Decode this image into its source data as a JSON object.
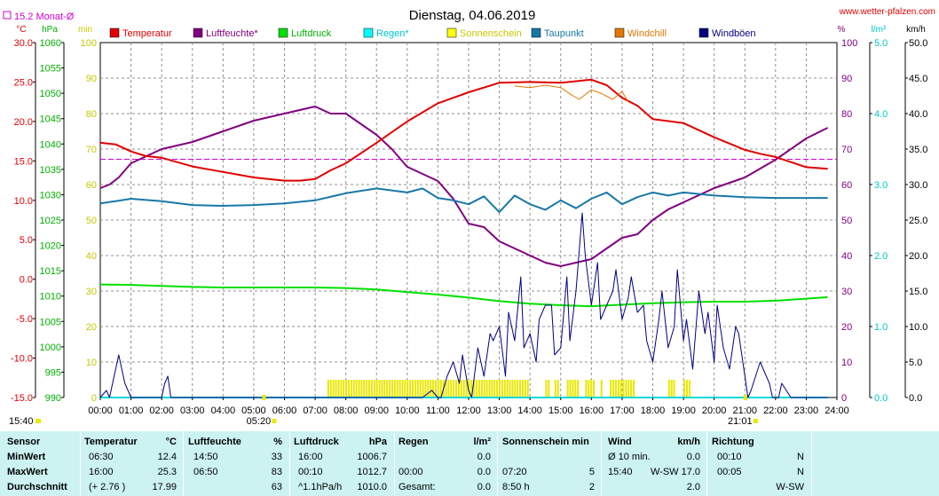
{
  "header": {
    "title": "Dienstag, 04.06.2019",
    "site": "www.wetter-pfalzen.com",
    "month_avg": "15.2 Monat-Ø"
  },
  "units": {
    "celsius": "°C",
    "hpa": "hPa",
    "min": "min",
    "percent": "%",
    "lm2": "l/m²",
    "kmh": "km/h"
  },
  "colors": {
    "temperature": "#e00000",
    "humidity": "#800080",
    "pressure": "#00e000",
    "rain": "#00d8d8",
    "sunshine": "#e8e800",
    "dewpoint": "#1878a8",
    "windchill": "#e07800",
    "gusts": "#000080",
    "monthavg": "#d000d0"
  },
  "chart_data": {
    "type": "line",
    "xlabels": [
      "00:00",
      "01:00",
      "02:00",
      "03:00",
      "04:00",
      "05:00",
      "06:00",
      "07:00",
      "08:00",
      "09:00",
      "10:00",
      "11:00",
      "12:00",
      "13:00",
      "14:00",
      "15:00",
      "16:00",
      "17:00",
      "18:00",
      "19:00",
      "20:00",
      "21:00",
      "22:00",
      "23:00",
      "24:00"
    ],
    "markers": {
      "sunrise": "05:20",
      "sunset": "21:01"
    },
    "axes": {
      "temperature": {
        "min": -15,
        "max": 30,
        "ticks": [
          "30.0",
          "25.0",
          "20.0",
          "15.0",
          "10.0",
          "5.0",
          "0.0",
          "-5.0",
          "-10.0",
          "-15.0"
        ]
      },
      "pressure": {
        "min": 990,
        "max": 1060,
        "ticks": [
          "1060",
          "1055",
          "1050",
          "1045",
          "1040",
          "1035",
          "1030",
          "1025",
          "1020",
          "1015",
          "1010",
          "1005",
          "1000",
          "995",
          "990"
        ]
      },
      "sunshine_min": {
        "min": 0,
        "max": 100,
        "ticks": [
          "100",
          "90",
          "80",
          "70",
          "60",
          "50",
          "40",
          "30",
          "20",
          "10",
          "0"
        ]
      },
      "humidity_pct": {
        "min": 0,
        "max": 100,
        "ticks": [
          "100",
          "90",
          "80",
          "70",
          "60",
          "50",
          "40",
          "30",
          "20",
          "10",
          "0"
        ]
      },
      "rain_lm2": {
        "min": 0,
        "max": 5,
        "ticks": [
          "5.0",
          "4.0",
          "3.0",
          "2.0",
          "1.0",
          "0.0"
        ]
      },
      "wind_kmh": {
        "min": 0,
        "max": 50,
        "ticks": [
          "50.0",
          "45.0",
          "40.0",
          "35.0",
          "30.0",
          "25.0",
          "20.0",
          "15.0",
          "10.0",
          "5.0",
          "0.0"
        ]
      }
    },
    "month_avg_temp": 15.2,
    "series": [
      {
        "name": "Temperatur",
        "axis": "temperature",
        "x": [
          0,
          0.5,
          1,
          1.5,
          2,
          3,
          4,
          5,
          6,
          6.5,
          7,
          7.5,
          8,
          9,
          10,
          11,
          12,
          13,
          14,
          15,
          16,
          16.5,
          17,
          17.5,
          18,
          19,
          20,
          21,
          21.5,
          22,
          23,
          23.7
        ],
        "y": [
          17.3,
          17.1,
          16.2,
          15.6,
          15.4,
          14.3,
          13.6,
          12.9,
          12.5,
          12.5,
          12.7,
          13.8,
          14.7,
          17.3,
          20.0,
          22.3,
          23.7,
          24.9,
          25.0,
          24.9,
          25.3,
          24.6,
          23.0,
          22.0,
          20.3,
          19.8,
          18.0,
          16.4,
          15.9,
          15.5,
          14.2,
          14.0
        ]
      },
      {
        "name": "Luftfeuchte*",
        "axis": "humidity_pct",
        "x": [
          0,
          0.3,
          0.6,
          1,
          1.5,
          2,
          3,
          4,
          5,
          6,
          6.5,
          7,
          7.5,
          8,
          8.5,
          9,
          9.5,
          10,
          10.5,
          11,
          11.5,
          12,
          12.5,
          13,
          13.5,
          14,
          14.5,
          15,
          15.5,
          16,
          16.5,
          17,
          17.5,
          18,
          18.5,
          19,
          20,
          21,
          22,
          23,
          23.7
        ],
        "y": [
          59,
          60,
          62,
          66,
          68,
          70,
          72,
          75,
          78,
          80,
          81,
          82,
          80,
          80,
          77,
          74,
          70,
          65,
          63,
          61,
          56,
          49,
          48,
          44,
          42,
          40,
          38,
          37,
          38,
          39,
          42,
          45,
          46,
          50,
          53,
          55,
          59,
          62,
          67,
          73,
          76
        ]
      },
      {
        "name": "Luftdruck",
        "axis": "pressure",
        "x": [
          0,
          1,
          2,
          3,
          4,
          5,
          6,
          7,
          8,
          9,
          10,
          11,
          12,
          13,
          14,
          15,
          16,
          17,
          18,
          19,
          20,
          21,
          22,
          23,
          23.7
        ],
        "y": [
          1012.3,
          1012.2,
          1012.0,
          1011.8,
          1011.7,
          1011.7,
          1011.7,
          1011.7,
          1011.6,
          1011.3,
          1010.8,
          1010.3,
          1009.7,
          1009.0,
          1008.5,
          1008.2,
          1008.0,
          1008.3,
          1008.6,
          1008.8,
          1008.9,
          1008.9,
          1009.1,
          1009.5,
          1009.8
        ]
      },
      {
        "name": "Regen*",
        "axis": "rain_lm2",
        "x": [
          0,
          23.7
        ],
        "y": [
          0,
          0
        ]
      },
      {
        "name": "Taupunkt",
        "axis": "temperature",
        "x": [
          0,
          0.5,
          1,
          2,
          3,
          4,
          5,
          6,
          7,
          8,
          9,
          10,
          10.5,
          11,
          11.5,
          12,
          12.5,
          13,
          13.5,
          14,
          14.5,
          15,
          15.5,
          16,
          16.5,
          17,
          17.5,
          18,
          18.5,
          19,
          20,
          21,
          22,
          23,
          23.7
        ],
        "y": [
          9.6,
          9.9,
          10.2,
          9.9,
          9.4,
          9.3,
          9.4,
          9.6,
          10.0,
          10.9,
          11.5,
          11.0,
          11.5,
          10.3,
          10.0,
          9.5,
          10.5,
          8.5,
          10.6,
          9.5,
          8.8,
          10.0,
          9.0,
          10.2,
          11.0,
          9.5,
          10.4,
          11.0,
          10.6,
          11.0,
          10.6,
          10.4,
          10.3,
          10.3,
          10.3
        ]
      },
      {
        "name": "Windchill",
        "axis": "temperature",
        "x": [
          13.5,
          14,
          14.5,
          15,
          15.3,
          15.6,
          16,
          16.3,
          16.7,
          17,
          17.2
        ],
        "y": [
          24.5,
          24.3,
          24.6,
          24.3,
          23.5,
          22.8,
          24.0,
          23.6,
          22.8,
          23.8,
          22.5
        ]
      },
      {
        "name": "Windböen",
        "axis": "wind_kmh",
        "x": [
          0,
          0.2,
          0.3,
          0.5,
          0.6,
          0.7,
          0.8,
          1,
          1.2,
          1.5,
          2,
          2.1,
          2.2,
          2.3,
          2.5,
          3,
          4,
          5,
          6,
          7,
          8,
          9,
          10,
          10.5,
          10.8,
          11,
          11.1,
          11.3,
          11.5,
          11.7,
          11.8,
          12,
          12.1,
          12.3,
          12.5,
          12.7,
          12.8,
          13,
          13.2,
          13.3,
          13.5,
          13.7,
          13.8,
          14,
          14.2,
          14.3,
          14.5,
          14.7,
          14.8,
          15,
          15.2,
          15.3,
          15.5,
          15.7,
          15.8,
          16,
          16.2,
          16.3,
          16.5,
          16.7,
          16.8,
          17,
          17.2,
          17.3,
          17.5,
          17.7,
          17.8,
          18,
          18.2,
          18.3,
          18.5,
          18.7,
          18.8,
          19,
          19.1,
          19.3,
          19.5,
          19.7,
          19.8,
          20,
          20.1,
          20.3,
          20.5,
          20.7,
          20.8,
          21,
          21.1,
          21.2,
          21.5,
          21.8,
          21.9,
          22,
          22.1,
          22.2,
          22.5,
          23,
          23.7
        ],
        "y": [
          0,
          1,
          0,
          4,
          6,
          4,
          2,
          0,
          0,
          0,
          0,
          2,
          3,
          0,
          0,
          0,
          0,
          0,
          0,
          0,
          0,
          0,
          0,
          0,
          1,
          0,
          0,
          3,
          5,
          2,
          6,
          1,
          0,
          7,
          3,
          9,
          8,
          10,
          3,
          12,
          8,
          17,
          7,
          9,
          5,
          11,
          13,
          13,
          6,
          7,
          17,
          8,
          15,
          26,
          20,
          13,
          19,
          11,
          13,
          15,
          18,
          11,
          14,
          17,
          12,
          13,
          8,
          5,
          11,
          15,
          7,
          10,
          18,
          8,
          11,
          4,
          15,
          9,
          12,
          5,
          13,
          7,
          4,
          10,
          9,
          3,
          0,
          1,
          5,
          2,
          0,
          0,
          0,
          2,
          0,
          0,
          0
        ]
      }
    ],
    "sunshine_blocks": [
      [
        7.4,
        13.9
      ],
      [
        14.5,
        14.6
      ],
      [
        14.8,
        14.9
      ],
      [
        15.2,
        15.6
      ],
      [
        15.8,
        16.1
      ],
      [
        16.3,
        16.35
      ],
      [
        16.6,
        17.4
      ],
      [
        18.5,
        18.7
      ],
      [
        19.0,
        19.2
      ]
    ]
  },
  "legend": [
    {
      "label": "Temperatur",
      "color": "#e00000",
      "textcolor": "#e00000"
    },
    {
      "label": "Luftfeuchte*",
      "color": "#800080",
      "textcolor": "#800080"
    },
    {
      "label": "Luftdruck",
      "color": "#00e000",
      "textcolor": "#00b000"
    },
    {
      "label": "Regen*",
      "color": "#00ffff",
      "textcolor": "#00c8c8"
    },
    {
      "label": "Sonnenschein",
      "color": "#ffff00",
      "textcolor": "#c8c800"
    },
    {
      "label": "Taupunkt",
      "color": "#1878a8",
      "textcolor": "#1878a8"
    },
    {
      "label": "Windchill",
      "color": "#e07800",
      "textcolor": "#e07800"
    },
    {
      "label": "Windböen",
      "color": "#000080",
      "textcolor": "#000080"
    }
  ],
  "stats": {
    "headers": [
      "Sensor",
      "Temperatur",
      "°C",
      "Luftfeuchte",
      "%",
      "Luftdruck",
      "hPa",
      "Regen",
      "l/m²",
      "Sonnenschein min",
      "Wind",
      "km/h",
      "Richtung"
    ],
    "labels": [
      "MinWert",
      "MaxWert",
      "Durchschnitt"
    ],
    "temp": [
      [
        "06:30",
        "12.4"
      ],
      [
        "16:00",
        "25.3"
      ],
      [
        "(+ 2.76 )",
        "17.99"
      ]
    ],
    "hum": [
      [
        "14:50",
        "33"
      ],
      [
        "06:50",
        "83"
      ],
      [
        "",
        "63"
      ]
    ],
    "pres": [
      [
        "16:00",
        "1006.7"
      ],
      [
        "00:10",
        "1012.7"
      ],
      [
        "^1.1hPa/h",
        "1010.0"
      ]
    ],
    "rain": [
      [
        "",
        ""
      ],
      [
        "00:00",
        "0.0"
      ],
      [
        "Gesamt:",
        "0.0"
      ]
    ],
    "rain_min": "0.0",
    "sun": [
      [
        "",
        ""
      ],
      [
        "07:20",
        "5"
      ],
      [
        "8:50 h",
        "2"
      ]
    ],
    "wind": [
      [
        "Ø 10 min.",
        "0.0"
      ],
      [
        "15:40",
        "W-SW 17.0"
      ],
      [
        "",
        "2.0"
      ]
    ],
    "dir": [
      [
        "00:10",
        "N"
      ],
      [
        "00:05",
        "N"
      ],
      [
        "",
        "W-SW"
      ]
    ]
  },
  "time_now": "15:40"
}
